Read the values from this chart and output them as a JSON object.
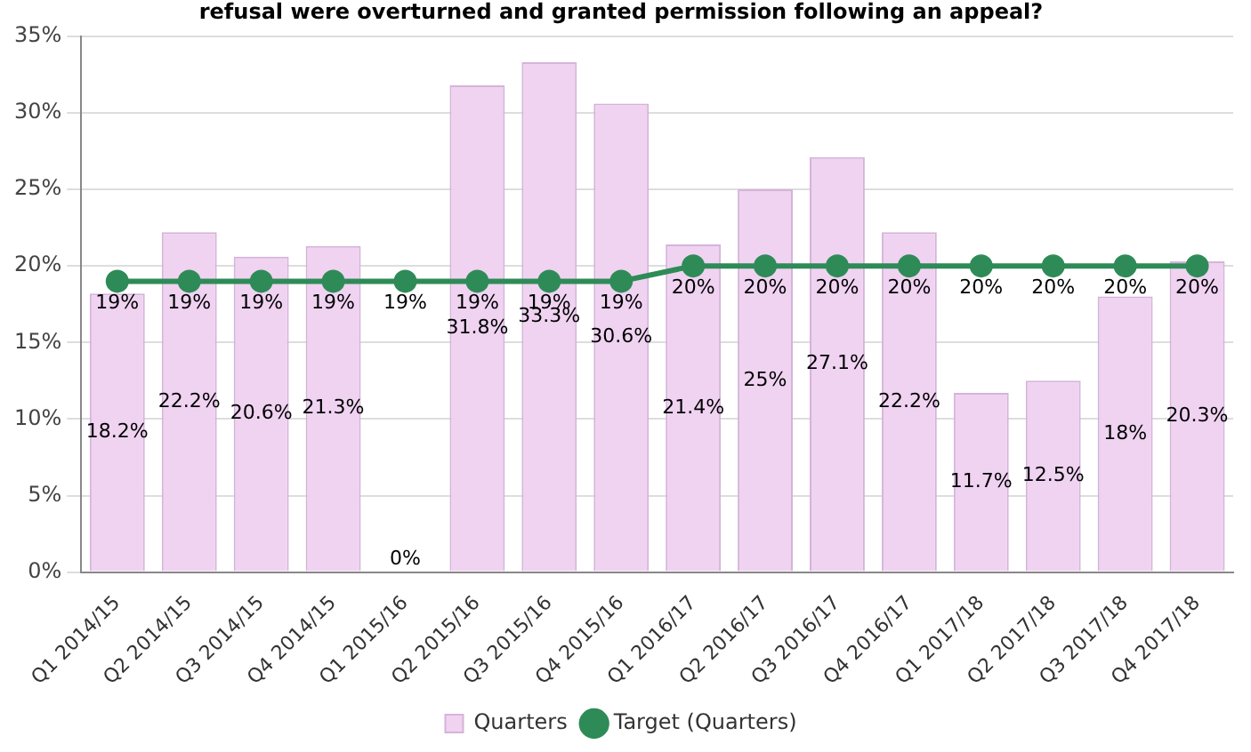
{
  "chart_data": {
    "type": "bar",
    "title": "refusal were overturned and granted permission following an appeal?",
    "categories": [
      "Q1 2014/15",
      "Q2 2014/15",
      "Q3 2014/15",
      "Q4 2014/15",
      "Q1 2015/16",
      "Q2 2015/16",
      "Q3 2015/16",
      "Q4 2015/16",
      "Q1 2016/17",
      "Q2 2016/17",
      "Q3 2016/17",
      "Q4 2016/17",
      "Q1 2017/18",
      "Q2 2017/18",
      "Q3 2017/18",
      "Q4 2017/18"
    ],
    "series": [
      {
        "name": "Quarters",
        "color": "#efd3f1",
        "values": [
          18.2,
          22.2,
          20.6,
          21.3,
          0,
          31.8,
          33.3,
          30.6,
          21.4,
          25,
          27.1,
          22.2,
          11.7,
          12.5,
          18,
          20.3
        ],
        "value_labels": [
          "18.2%",
          "22.2%",
          "20.6%",
          "21.3%",
          "0%",
          "31.8%",
          "33.3%",
          "30.6%",
          "21.4%",
          "25%",
          "27.1%",
          "22.2%",
          "11.7%",
          "12.5%",
          "18%",
          "20.3%"
        ]
      },
      {
        "name": "Target (Quarters)",
        "type": "line",
        "color": "#2e8b57",
        "values": [
          19,
          19,
          19,
          19,
          19,
          19,
          19,
          19,
          20,
          20,
          20,
          20,
          20,
          20,
          20,
          20
        ],
        "value_labels": [
          "19%",
          "19%",
          "19%",
          "19%",
          "19%",
          "19%",
          "19%",
          "19%",
          "20%",
          "20%",
          "20%",
          "20%",
          "20%",
          "20%",
          "20%",
          "20%"
        ]
      }
    ],
    "ylim": [
      0,
      35
    ],
    "yticks": [
      {
        "value": 0,
        "label": "0%"
      },
      {
        "value": 5,
        "label": "5%"
      },
      {
        "value": 10,
        "label": "10%"
      },
      {
        "value": 15,
        "label": "15%"
      },
      {
        "value": 20,
        "label": "20%"
      },
      {
        "value": 25,
        "label": "25%"
      },
      {
        "value": 30,
        "label": "30%"
      },
      {
        "value": 35,
        "label": "35%"
      }
    ],
    "grid": "y",
    "legend": "bottom",
    "marker": "circle",
    "line_style": "solid"
  }
}
